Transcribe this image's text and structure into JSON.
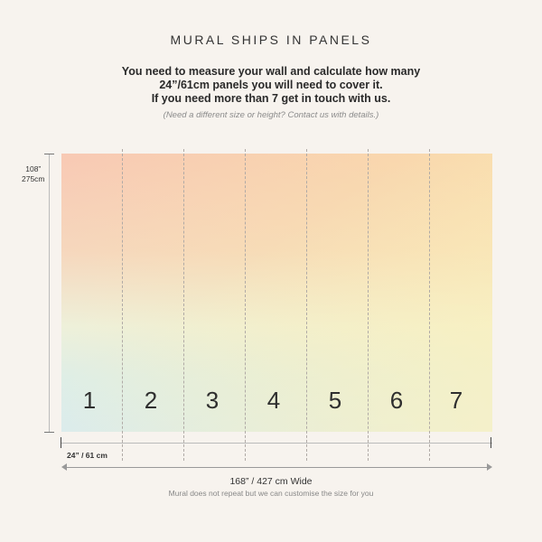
{
  "title": "MURAL SHIPS IN PANELS",
  "instructions": {
    "lines": [
      "You need to measure your wall and calculate how many",
      "24”/61cm panels you will need to cover it.",
      "If you need more than 7 get in touch with us."
    ],
    "note": "(Need a different size or height? Contact us with details.)"
  },
  "height": {
    "in": "108”",
    "cm": "275cm"
  },
  "panel_width_label": "24” / 61 cm",
  "panels": [
    "1",
    "2",
    "3",
    "4",
    "5",
    "6",
    "7"
  ],
  "total_width_label": "168” / 427 cm Wide",
  "repeat_note": "Mural does not repeat but we can customise the size for you",
  "colors": {
    "background": "#f7f3ee",
    "gradient_top_left": "#f8c9b4",
    "gradient_top_right": "#fae3a5",
    "gradient_bottom_left": "#d8ebef",
    "gradient_bottom_right": "#f9f4d6"
  }
}
